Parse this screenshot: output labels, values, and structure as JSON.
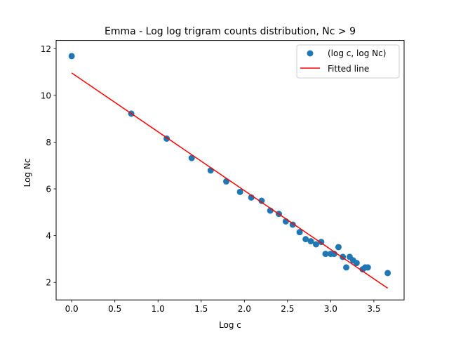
{
  "chart_data": {
    "type": "scatter",
    "title": "Emma - Log log trigram counts distribution, Nc > 9",
    "xlabel": "Log c",
    "ylabel": "Log Nc",
    "xlim": [
      -0.18,
      3.85
    ],
    "ylim": [
      1.25,
      12.35
    ],
    "xticks": [
      0.0,
      0.5,
      1.0,
      1.5,
      2.0,
      2.5,
      3.0,
      3.5
    ],
    "xtick_labels": [
      "0.0",
      "0.5",
      "1.0",
      "1.5",
      "2.0",
      "2.5",
      "3.0",
      "3.5"
    ],
    "yticks": [
      2,
      4,
      6,
      8,
      10,
      12
    ],
    "ytick_labels": [
      "2",
      "4",
      "6",
      "8",
      "10",
      "12"
    ],
    "grid": false,
    "legend_position": "top-right",
    "series": [
      {
        "name": "(log c, log Nc)",
        "kind": "scatter",
        "color": "#1f77b4",
        "points": [
          [
            0.0,
            11.68
          ],
          [
            0.69,
            9.22
          ],
          [
            1.1,
            8.15
          ],
          [
            1.39,
            7.32
          ],
          [
            1.61,
            6.79
          ],
          [
            1.79,
            6.32
          ],
          [
            1.95,
            5.87
          ],
          [
            2.08,
            5.63
          ],
          [
            2.2,
            5.49
          ],
          [
            2.3,
            5.07
          ],
          [
            2.4,
            4.93
          ],
          [
            2.48,
            4.61
          ],
          [
            2.56,
            4.47
          ],
          [
            2.64,
            4.15
          ],
          [
            2.71,
            3.85
          ],
          [
            2.77,
            3.76
          ],
          [
            2.83,
            3.63
          ],
          [
            2.89,
            3.73
          ],
          [
            2.94,
            3.22
          ],
          [
            3.0,
            3.22
          ],
          [
            3.04,
            3.22
          ],
          [
            3.09,
            3.51
          ],
          [
            3.14,
            3.09
          ],
          [
            3.18,
            2.64
          ],
          [
            3.22,
            3.09
          ],
          [
            3.26,
            2.94
          ],
          [
            3.3,
            2.83
          ],
          [
            3.37,
            2.56
          ],
          [
            3.4,
            2.64
          ],
          [
            3.43,
            2.64
          ],
          [
            3.66,
            2.4
          ]
        ]
      },
      {
        "name": "Fitted line",
        "kind": "line",
        "color": "#ff0000",
        "points": [
          [
            0.0,
            10.96
          ],
          [
            3.66,
            1.75
          ]
        ]
      }
    ]
  }
}
